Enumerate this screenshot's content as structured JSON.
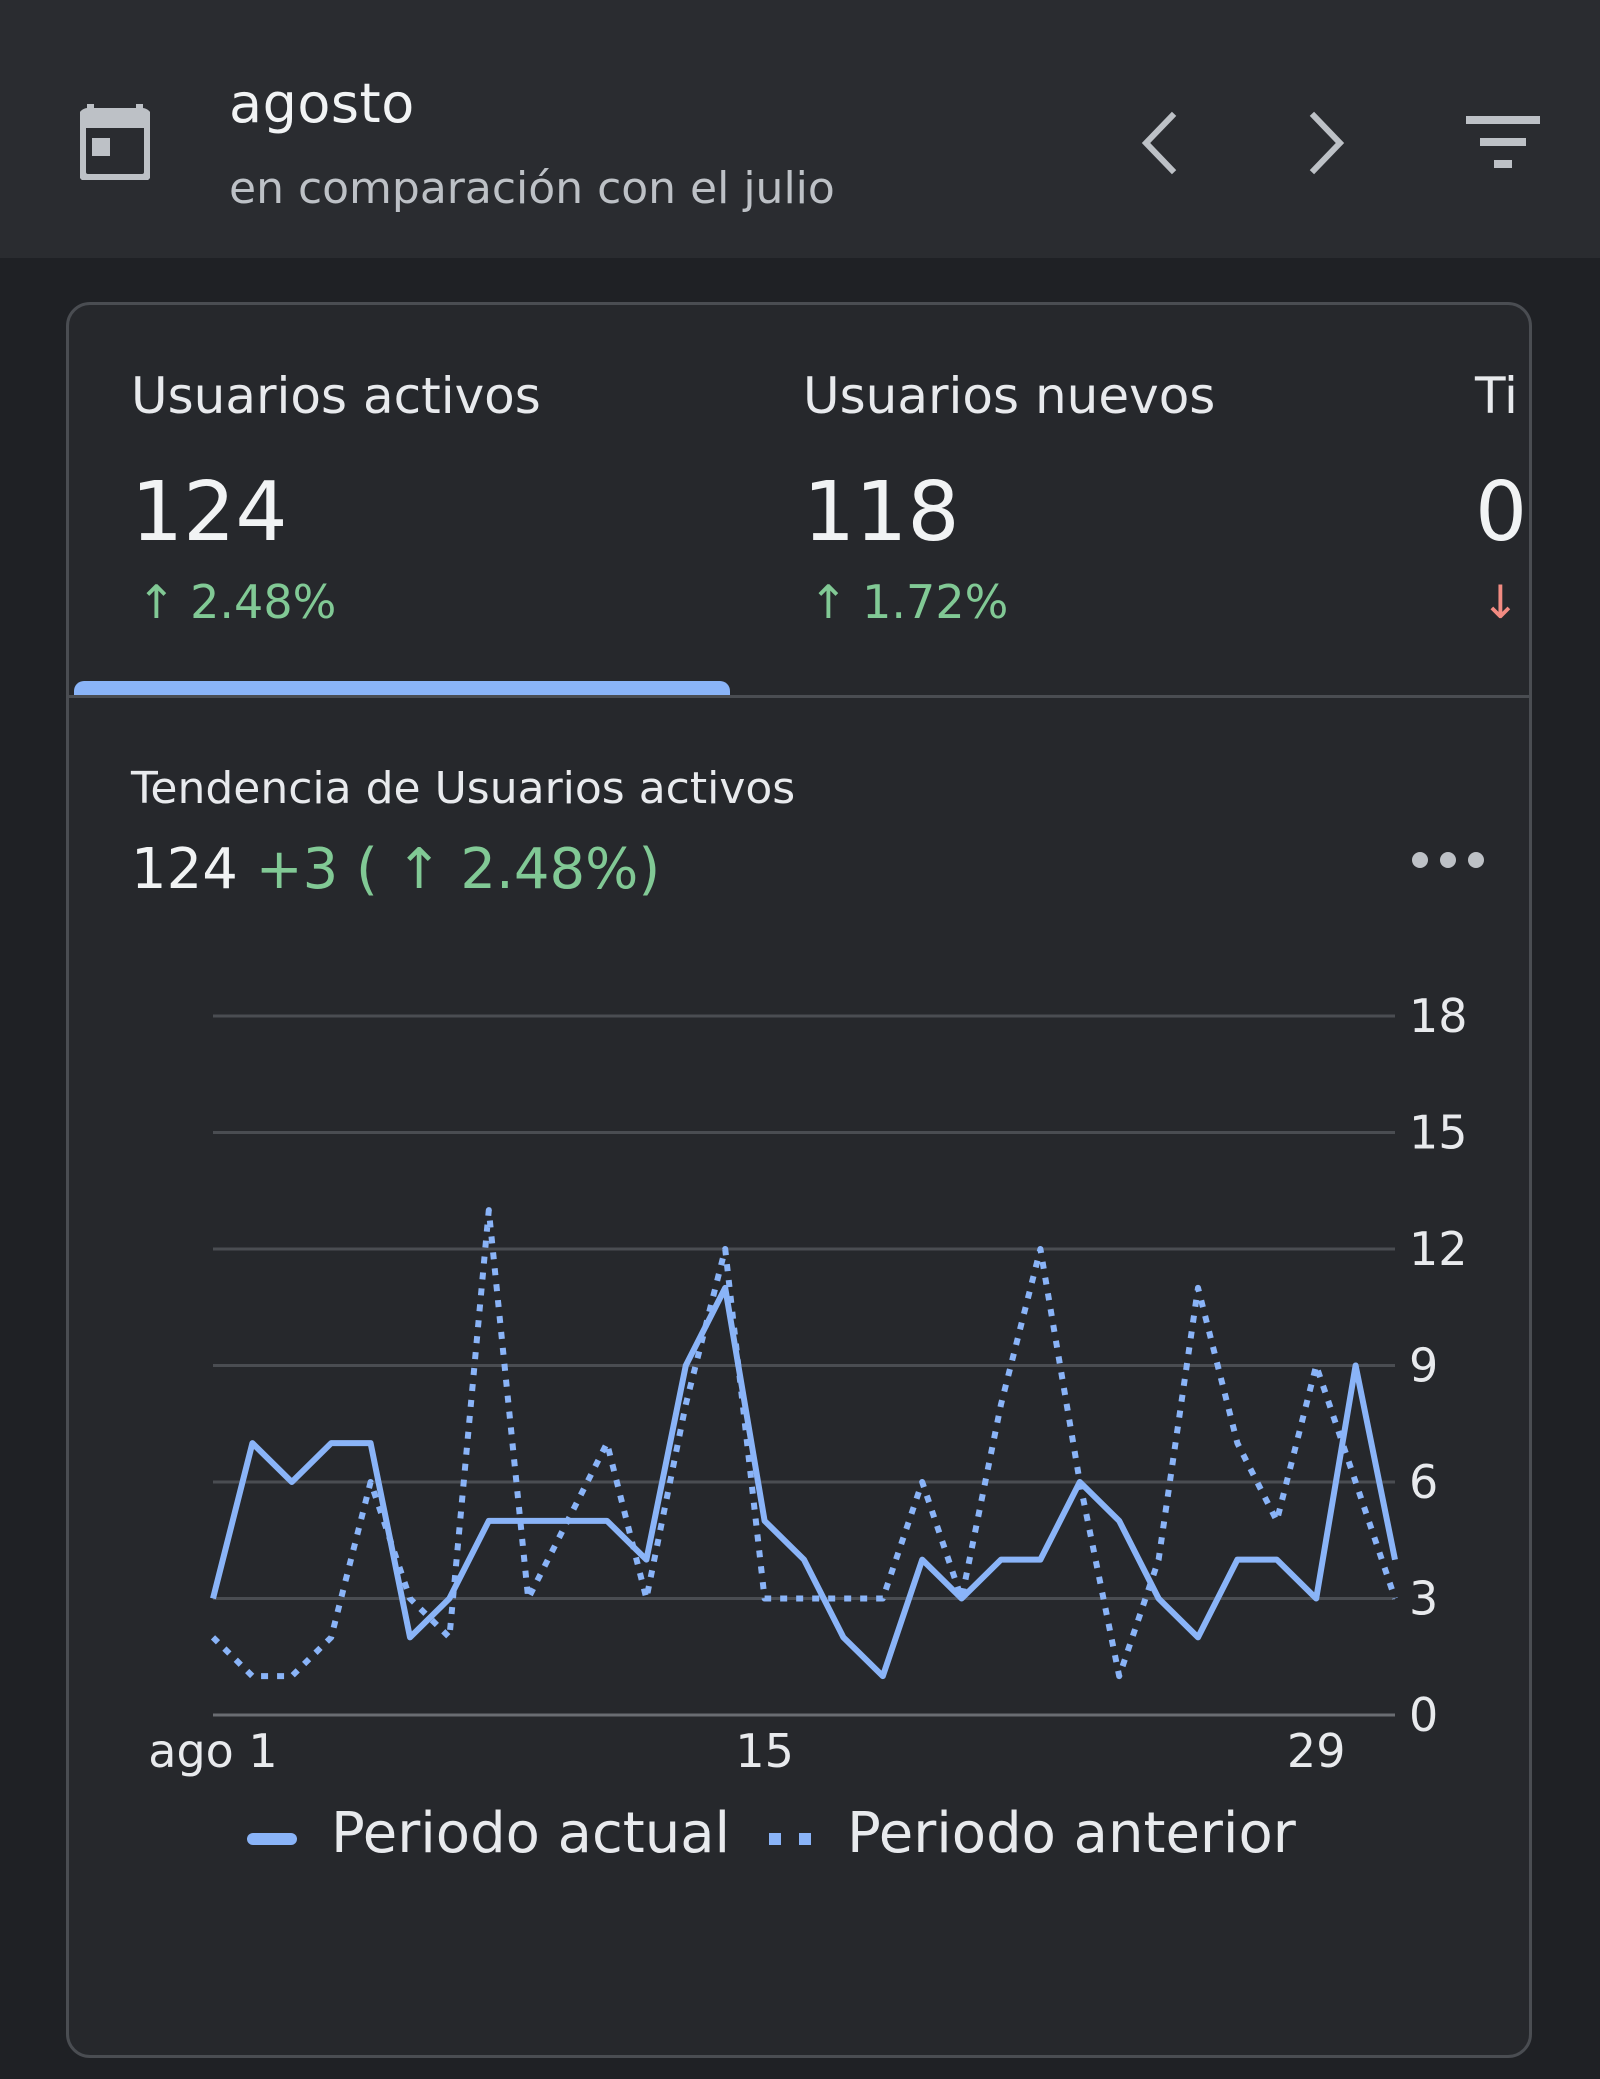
{
  "header": {
    "title": "agosto",
    "subtitle": "en comparación con el julio",
    "calendar_icon": "calendar-icon",
    "prev_icon": "chevron-left-icon",
    "next_icon": "chevron-right-icon",
    "filter_icon": "filter-icon"
  },
  "tabs": [
    {
      "label": "Usuarios activos",
      "value": "124",
      "change": "↑ 2.48%",
      "direction": "up",
      "selected": true
    },
    {
      "label": "Usuarios nuevos",
      "value": "118",
      "change": "↑ 1.72%",
      "direction": "up",
      "selected": false
    },
    {
      "label": "Ti",
      "value": "0",
      "change": "↓",
      "direction": "down",
      "selected": false
    }
  ],
  "trend": {
    "title": "Tendencia de Usuarios activos",
    "value": "124",
    "delta": "+3 ( ↑ 2.48%)",
    "more_icon": "more-horizontal-icon"
  },
  "colors": {
    "accent": "#8ab4f8",
    "positive": "#81c995",
    "negative": "#f28b82",
    "background": "#1f2125",
    "card": "#26282c"
  },
  "chart_data": {
    "type": "line",
    "x": [
      1,
      2,
      3,
      4,
      5,
      6,
      7,
      8,
      9,
      10,
      11,
      12,
      13,
      14,
      15,
      16,
      17,
      18,
      19,
      20,
      21,
      22,
      23,
      24,
      25,
      26,
      27,
      28,
      29,
      30,
      31
    ],
    "x_tick_values": [
      1,
      15,
      29
    ],
    "x_tick_labels": [
      "ago 1",
      "15",
      "29"
    ],
    "yticks": [
      0,
      3,
      6,
      9,
      12,
      15,
      18
    ],
    "ylim": [
      0,
      18
    ],
    "grid": true,
    "y_axis_side": "right",
    "legend_position": "bottom-left",
    "series": [
      {
        "name": "Periodo actual",
        "style": "solid",
        "color": "#8ab4f8",
        "values": [
          3,
          7,
          6,
          7,
          7,
          2,
          3,
          5,
          5,
          5,
          5,
          4,
          9,
          11,
          5,
          4,
          2,
          1,
          4,
          3,
          4,
          4,
          6,
          5,
          3,
          2,
          4,
          4,
          3,
          9,
          4
        ]
      },
      {
        "name": "Periodo anterior",
        "style": "dotted",
        "color": "#8ab4f8",
        "values": [
          2,
          1,
          1,
          2,
          6,
          3,
          2,
          13,
          3,
          5,
          7,
          3,
          8,
          12,
          3,
          3,
          3,
          3,
          6,
          3,
          8,
          12,
          6,
          1,
          4,
          11,
          7,
          5,
          9,
          6,
          3
        ]
      }
    ]
  }
}
